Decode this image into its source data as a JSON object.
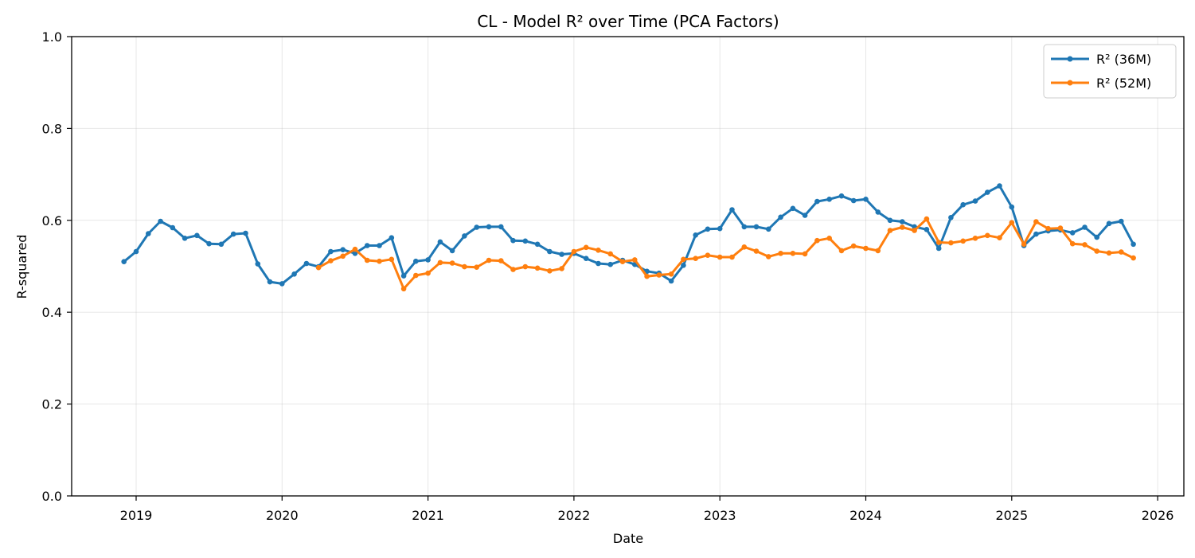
{
  "chart_data": {
    "type": "line",
    "title": "CL - Model R² over Time (PCA Factors)",
    "xlabel": "Date",
    "ylabel": "R-squared",
    "ylim": [
      0,
      1
    ],
    "yticks": [
      "0.0",
      "0.2",
      "0.4",
      "0.6",
      "0.8",
      "1.0"
    ],
    "xticks": [
      "2019",
      "2020",
      "2021",
      "2022",
      "2023",
      "2024",
      "2025",
      "2026"
    ],
    "grid": true,
    "legend_position": "top-right",
    "colors": {
      "series_36m": "#1f77b4",
      "series_52m": "#ff7f0e"
    },
    "series": [
      {
        "name": "R² (36M)",
        "start": "2018-12",
        "values": [
          0.51,
          0.532,
          0.571,
          0.598,
          0.584,
          0.561,
          0.567,
          0.549,
          0.548,
          0.57,
          0.572,
          0.505,
          0.466,
          0.462,
          0.483,
          0.506,
          0.499,
          0.532,
          0.536,
          0.528,
          0.545,
          0.545,
          0.562,
          0.479,
          0.511,
          0.514,
          0.553,
          0.534,
          0.566,
          0.585,
          0.586,
          0.586,
          0.556,
          0.555,
          0.548,
          0.532,
          0.526,
          0.528,
          0.517,
          0.506,
          0.504,
          0.513,
          0.504,
          0.489,
          0.485,
          0.468,
          0.502,
          0.568,
          0.581,
          0.582,
          0.623,
          0.586,
          0.586,
          0.581,
          0.607,
          0.626,
          0.611,
          0.641,
          0.646,
          0.653,
          0.643,
          0.646,
          0.618,
          0.6,
          0.597,
          0.586,
          0.58,
          0.539,
          0.606,
          0.634,
          0.642,
          0.661,
          0.675,
          0.629,
          0.545,
          0.57,
          0.577,
          0.579,
          0.573,
          0.585,
          0.563,
          0.593,
          0.598,
          0.548
        ]
      },
      {
        "name": "R² (52M)",
        "start": "2020-04",
        "values": [
          0.497,
          0.512,
          0.522,
          0.537,
          0.513,
          0.511,
          0.515,
          0.451,
          0.48,
          0.485,
          0.508,
          0.507,
          0.499,
          0.498,
          0.513,
          0.512,
          0.493,
          0.499,
          0.496,
          0.49,
          0.495,
          0.532,
          0.541,
          0.535,
          0.527,
          0.51,
          0.514,
          0.478,
          0.481,
          0.483,
          0.515,
          0.517,
          0.524,
          0.52,
          0.52,
          0.542,
          0.533,
          0.521,
          0.528,
          0.528,
          0.527,
          0.556,
          0.561,
          0.534,
          0.544,
          0.539,
          0.534,
          0.578,
          0.585,
          0.578,
          0.603,
          0.552,
          0.551,
          0.555,
          0.561,
          0.567,
          0.562,
          0.595,
          0.548,
          0.597,
          0.582,
          0.583,
          0.549,
          0.547,
          0.533,
          0.529,
          0.531,
          0.518
        ]
      }
    ]
  }
}
